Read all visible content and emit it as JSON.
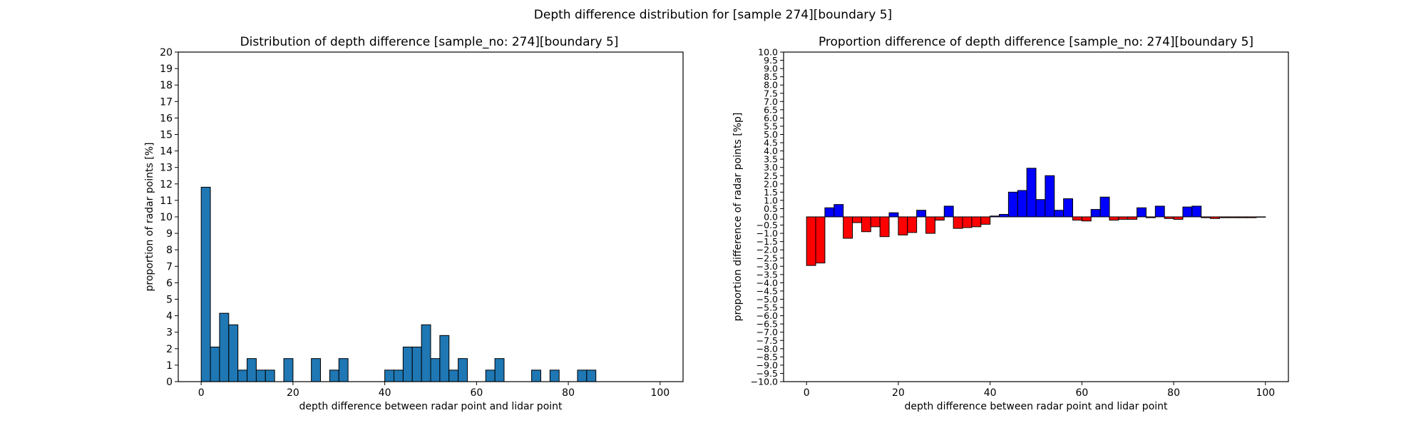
{
  "figure_title": "Depth difference distribution for [sample 274][boundary 5]",
  "chart_data": [
    {
      "type": "bar",
      "title": "Distribution of depth difference [sample_no: 274][boundary 5]",
      "xlabel": "depth difference between radar point and lidar point",
      "ylabel": "proportion of radar points [%]",
      "xlim": [
        -5,
        105
      ],
      "ylim": [
        0,
        20
      ],
      "xticks": [
        0,
        20,
        40,
        60,
        80,
        100
      ],
      "xtick_labels": [
        "0",
        "20",
        "40",
        "60",
        "80",
        "100"
      ],
      "yticks": [
        0,
        1,
        2,
        3,
        4,
        5,
        6,
        7,
        8,
        9,
        10,
        11,
        12,
        13,
        14,
        15,
        16,
        17,
        18,
        19,
        20
      ],
      "ytick_labels": [
        "0",
        "1",
        "2",
        "3",
        "4",
        "5",
        "6",
        "7",
        "8",
        "9",
        "10",
        "11",
        "12",
        "13",
        "14",
        "15",
        "16",
        "17",
        "18",
        "19",
        "20"
      ],
      "bin_width": 2,
      "bin_starts": [
        0,
        2,
        4,
        6,
        8,
        10,
        12,
        14,
        16,
        18,
        20,
        22,
        24,
        26,
        28,
        30,
        32,
        34,
        36,
        38,
        40,
        42,
        44,
        46,
        48,
        50,
        52,
        54,
        56,
        58,
        60,
        62,
        64,
        66,
        68,
        70,
        72,
        74,
        76,
        78,
        80,
        82,
        84,
        86,
        88,
        90,
        92,
        94,
        96,
        98
      ],
      "values": [
        11.8,
        2.1,
        4.15,
        3.45,
        0.7,
        1.4,
        0.7,
        0.7,
        0,
        1.4,
        0,
        0,
        1.4,
        0,
        0.7,
        1.4,
        0,
        0,
        0,
        0,
        0.7,
        0.7,
        2.1,
        2.1,
        3.45,
        1.4,
        2.8,
        0.7,
        1.4,
        0,
        0,
        0.7,
        1.4,
        0,
        0,
        0,
        0.7,
        0,
        0.7,
        0,
        0,
        0.7,
        0.7,
        0,
        0,
        0,
        0,
        0,
        0,
        0
      ],
      "colors": {
        "bar": "#1f77b4",
        "edge": "#000000"
      },
      "grid": false
    },
    {
      "type": "bar",
      "title": "Proportion difference of depth difference [sample_no: 274][boundary 5]",
      "xlabel": "depth difference between radar point and lidar point",
      "ylabel": "proportion difference of radar points [%p]",
      "xlim": [
        -5,
        105
      ],
      "ylim": [
        -10,
        10
      ],
      "xticks": [
        0,
        20,
        40,
        60,
        80,
        100
      ],
      "xtick_labels": [
        "0",
        "20",
        "40",
        "60",
        "80",
        "100"
      ],
      "yticks": [
        10,
        9.5,
        9,
        8.5,
        8,
        7.5,
        7,
        6.5,
        6,
        5.5,
        5,
        4.5,
        4,
        3.5,
        3,
        2.5,
        2,
        1.5,
        1,
        0.5,
        0,
        -0.5,
        -1,
        -1.5,
        -2,
        -2.5,
        -3,
        -3.5,
        -4,
        -4.5,
        -5,
        -5.5,
        -6,
        -6.5,
        -7,
        -7.5,
        -8,
        -8.5,
        -9,
        -9.5,
        -10
      ],
      "ytick_labels": [
        "10.0",
        "9.5",
        "9.0",
        "8.5",
        "8.0",
        "7.5",
        "7.0",
        "6.5",
        "6.0",
        "5.5",
        "5.0",
        "4.5",
        "4.0",
        "3.5",
        "3.0",
        "2.5",
        "2.0",
        "1.5",
        "1.0",
        "0.5",
        "0.0",
        "−0.5",
        "−1.0",
        "−1.5",
        "−2.0",
        "−2.5",
        "−3.0",
        "−3.5",
        "−4.0",
        "−4.5",
        "−5.0",
        "−5.5",
        "−6.0",
        "−6.5",
        "−7.0",
        "−7.5",
        "−8.0",
        "−8.5",
        "−9.0",
        "−9.5",
        "−10.0"
      ],
      "bin_width": 2,
      "bin_starts": [
        0,
        2,
        4,
        6,
        8,
        10,
        12,
        14,
        16,
        18,
        20,
        22,
        24,
        26,
        28,
        30,
        32,
        34,
        36,
        38,
        40,
        42,
        44,
        46,
        48,
        50,
        52,
        54,
        56,
        58,
        60,
        62,
        64,
        66,
        68,
        70,
        72,
        74,
        76,
        78,
        80,
        82,
        84,
        86,
        88,
        90,
        92,
        94,
        96,
        98
      ],
      "values": [
        -2.95,
        -2.8,
        0.55,
        0.75,
        -1.3,
        -0.35,
        -0.9,
        -0.6,
        -1.2,
        0.25,
        -1.1,
        -0.95,
        0.4,
        -1.0,
        -0.2,
        0.65,
        -0.7,
        -0.65,
        -0.6,
        -0.45,
        0.05,
        0.15,
        1.5,
        1.6,
        2.95,
        1.05,
        2.5,
        0.4,
        1.1,
        -0.2,
        -0.25,
        0.45,
        1.2,
        -0.2,
        -0.15,
        -0.15,
        0.55,
        -0.05,
        0.65,
        -0.1,
        -0.15,
        0.6,
        0.65,
        -0.05,
        -0.1,
        -0.05,
        -0.05,
        -0.05,
        -0.05,
        -0.02
      ],
      "colors": {
        "positive": "#0000ff",
        "negative": "#ff0000",
        "edge": "#000000"
      },
      "grid": false
    }
  ]
}
